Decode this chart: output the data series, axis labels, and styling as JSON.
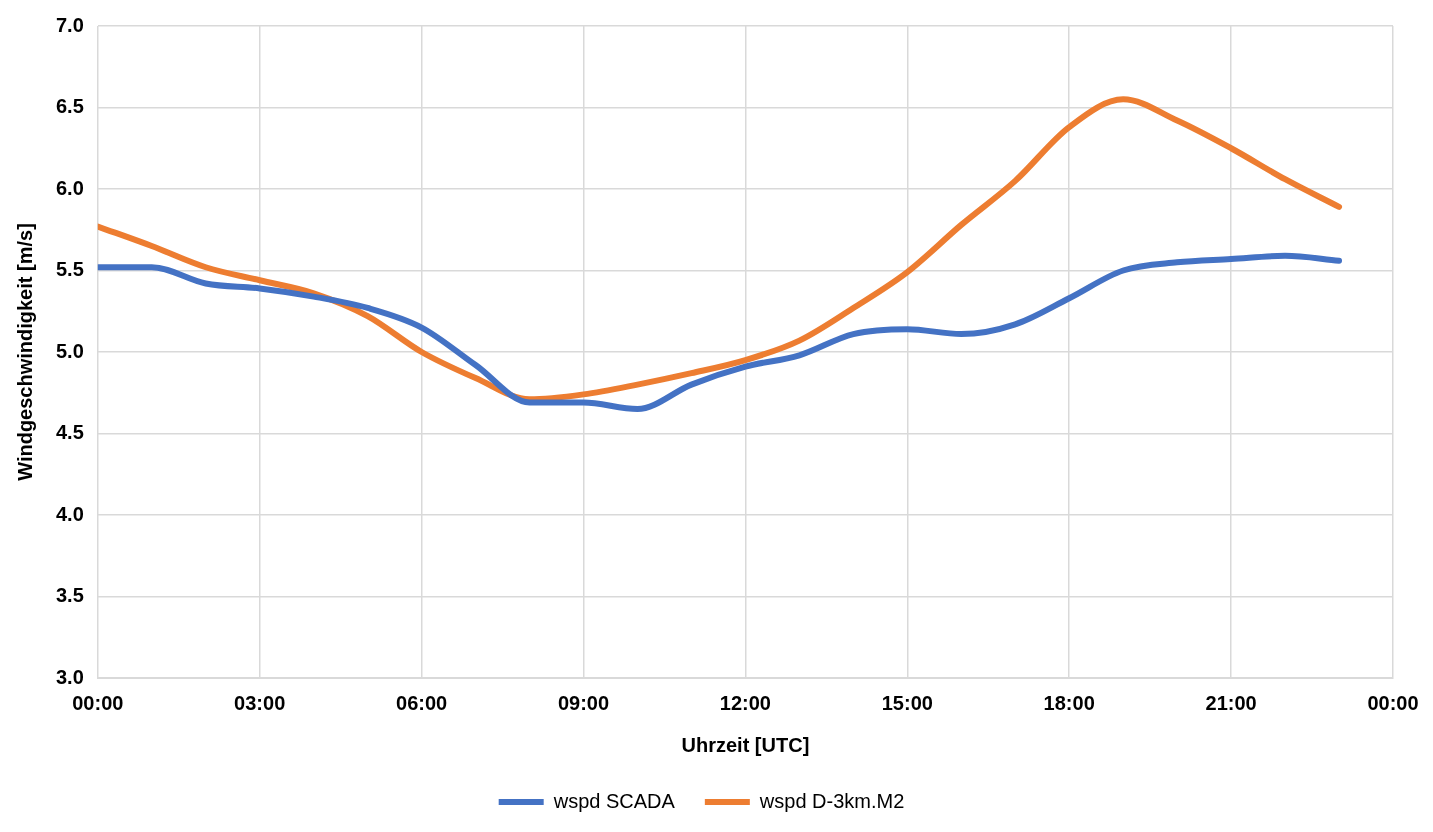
{
  "chart_data": {
    "type": "line",
    "xlabel": "Uhrzeit [UTC]",
    "ylabel": "Windgeschwindigkeit [m/s]",
    "x": [
      0,
      1,
      2,
      3,
      4,
      5,
      6,
      7,
      8,
      9,
      10,
      11,
      12,
      13,
      14,
      15,
      16,
      17,
      18,
      19,
      20,
      21,
      22,
      23
    ],
    "series": [
      {
        "name": "wspd SCADA",
        "color": "#4472c4",
        "values": [
          5.52,
          5.52,
          5.42,
          5.39,
          5.34,
          5.27,
          5.15,
          4.92,
          4.69,
          4.69,
          4.65,
          4.8,
          4.91,
          4.98,
          5.11,
          5.14,
          5.11,
          5.17,
          5.33,
          5.5,
          5.55,
          5.57,
          5.59,
          5.56
        ]
      },
      {
        "name": "wspd D-3km.M2",
        "color": "#ed7d31",
        "values": [
          5.77,
          5.65,
          5.52,
          5.44,
          5.36,
          5.22,
          5.0,
          4.84,
          4.71,
          4.74,
          4.8,
          4.87,
          4.95,
          5.07,
          5.27,
          5.49,
          5.78,
          6.05,
          6.38,
          6.55,
          6.42,
          6.25,
          6.06,
          5.89
        ]
      }
    ],
    "xlim": [
      0,
      24
    ],
    "xticks": [
      {
        "value": 0,
        "label": "00:00"
      },
      {
        "value": 3,
        "label": "03:00"
      },
      {
        "value": 6,
        "label": "06:00"
      },
      {
        "value": 9,
        "label": "09:00"
      },
      {
        "value": 12,
        "label": "12:00"
      },
      {
        "value": 15,
        "label": "15:00"
      },
      {
        "value": 18,
        "label": "18:00"
      },
      {
        "value": 21,
        "label": "21:00"
      },
      {
        "value": 24,
        "label": "00:00"
      }
    ],
    "ylim": [
      3.0,
      7.0
    ],
    "yticks": [
      {
        "value": 3,
        "label": "3.0"
      },
      {
        "value": 3.5,
        "label": "3.5"
      },
      {
        "value": 4,
        "label": "4.0"
      },
      {
        "value": 4.5,
        "label": "4.5"
      },
      {
        "value": 5,
        "label": "5.0"
      },
      {
        "value": 5.5,
        "label": "5.5"
      },
      {
        "value": 6,
        "label": "6.0"
      },
      {
        "value": 6.5,
        "label": "6.5"
      },
      {
        "value": 7,
        "label": "7.0"
      }
    ],
    "grid": true,
    "legend": "bottom",
    "marker": "none",
    "line_style": "solid"
  }
}
